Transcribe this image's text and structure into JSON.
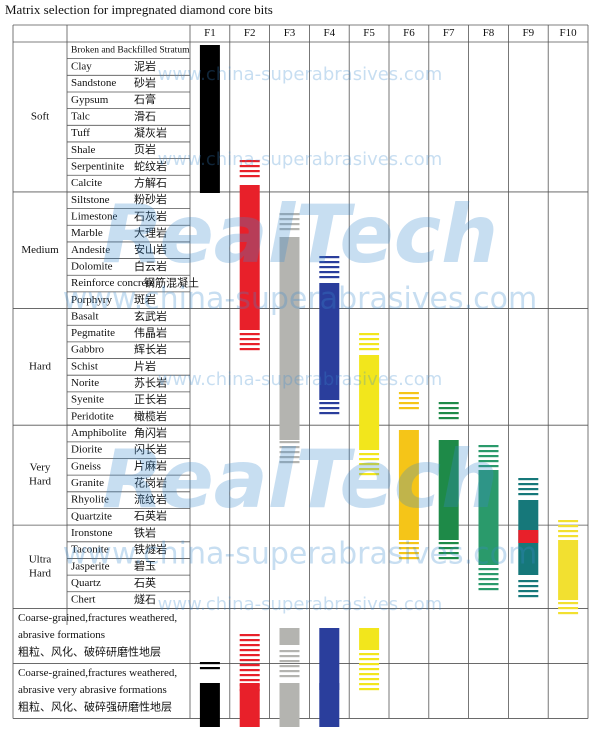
{
  "title": "Matrix selection for impregnated diamond core bits",
  "table": {
    "header": [
      "F1",
      "F2",
      "F3",
      "F4",
      "F5",
      "F6",
      "F7",
      "F8",
      "F9",
      "F10"
    ],
    "groups": [
      {
        "label": [
          "Soft"
        ],
        "rows": [
          [
            "Broken and Backfilled Stratum"
          ],
          [
            "Clay",
            "泥岩"
          ],
          [
            "Sandstone",
            "砂岩"
          ],
          [
            "Gypsum",
            "石膏"
          ],
          [
            "Talc",
            "滑石"
          ],
          [
            "Tuff",
            "凝灰岩"
          ],
          [
            "Shale",
            "页岩"
          ],
          [
            "Serpentinite",
            "蛇纹岩"
          ],
          [
            "Calcite",
            "方解石"
          ]
        ]
      },
      {
        "label": [
          "Medium"
        ],
        "rows": [
          [
            "Siltstone",
            "粉砂岩"
          ],
          [
            "Limestone",
            "石灰岩"
          ],
          [
            "Marble",
            "大理岩"
          ],
          [
            "Andesite",
            "安山岩"
          ],
          [
            "Dolomite",
            "白云岩"
          ],
          [
            "Reinforce concrete",
            "钢筋混凝土"
          ],
          [
            "Porphyry",
            "斑岩"
          ]
        ]
      },
      {
        "label": [
          "Hard"
        ],
        "rows": [
          [
            "Basalt",
            "玄武岩"
          ],
          [
            "Pegmatite",
            "伟晶岩"
          ],
          [
            "Gabbro",
            "辉长岩"
          ],
          [
            "Schist",
            "片岩"
          ],
          [
            "Norite",
            "苏长岩"
          ],
          [
            "Syenite",
            "正长岩"
          ],
          [
            "Peridotite",
            "橄榄岩"
          ]
        ]
      },
      {
        "label": [
          "Very",
          "Hard"
        ],
        "rows": [
          [
            "Amphibolite",
            "角闪岩"
          ],
          [
            "Diorite",
            "闪长岩"
          ],
          [
            "Gneiss",
            "片麻岩"
          ],
          [
            "Granite",
            "花岗岩"
          ],
          [
            "Rhyolite",
            "流纹岩"
          ],
          [
            "Quartzite",
            "石英岩"
          ]
        ]
      },
      {
        "label": [
          "Ultra",
          "Hard"
        ],
        "rows": [
          [
            "Ironstone",
            "铁岩"
          ],
          [
            "Taconite",
            "铁燧岩"
          ],
          [
            "Jasperite",
            "碧玉"
          ],
          [
            "Quartz",
            "石英"
          ],
          [
            "Chert",
            "燧石"
          ]
        ]
      }
    ],
    "footer_rows": [
      [
        "Coarse-grained,fractures weathered,",
        "abrasive formations",
        "粗粒、风化、破碎研磨性地层"
      ],
      [
        "Coarse-grained,fractures weathered,",
        "abrasive very abrasive formations",
        "粗粒、风化、破碎强研磨性地层"
      ]
    ]
  },
  "watermark": {
    "url": "www.china-superabrasives.com",
    "logo": "RealTech"
  }
}
